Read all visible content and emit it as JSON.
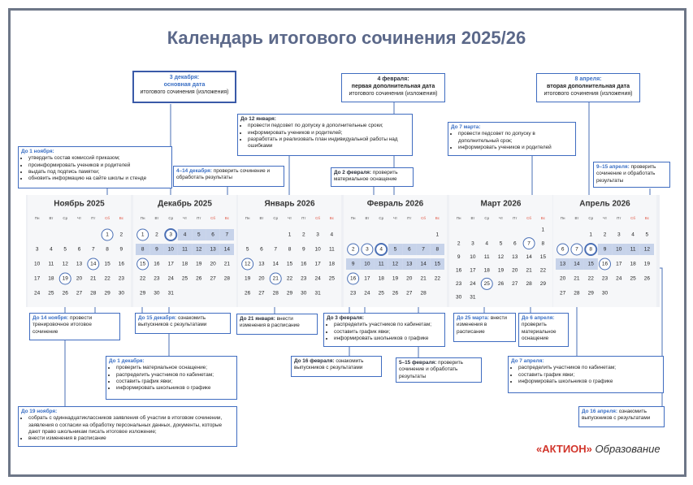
{
  "title": "Календарь итогового сочинения 2025/26",
  "weekdays": [
    "Пн",
    "Вт",
    "Ср",
    "Чт",
    "Пт",
    "Сб",
    "Вс"
  ],
  "weekend_color": "#e0523f",
  "highlight_color": "#c7d3ea",
  "circle_color": "#4a6fb5",
  "months": [
    {
      "name": "Ноябрь 2025",
      "weeks": [
        [
          null,
          null,
          null,
          null,
          null,
          1,
          2
        ],
        [
          3,
          4,
          5,
          6,
          7,
          8,
          9
        ],
        [
          10,
          11,
          12,
          13,
          14,
          15,
          16
        ],
        [
          17,
          18,
          19,
          20,
          21,
          22,
          23
        ],
        [
          24,
          25,
          26,
          27,
          28,
          29,
          30
        ]
      ],
      "highlighted": [],
      "circled": [
        1,
        14,
        19
      ]
    },
    {
      "name": "Декабрь 2025",
      "weeks": [
        [
          1,
          2,
          3,
          4,
          5,
          6,
          7
        ],
        [
          8,
          9,
          10,
          11,
          12,
          13,
          14
        ],
        [
          15,
          16,
          17,
          18,
          19,
          20,
          21
        ],
        [
          22,
          23,
          24,
          25,
          26,
          27,
          28
        ],
        [
          29,
          30,
          31,
          null,
          null,
          null,
          null
        ]
      ],
      "highlighted": [
        4,
        5,
        6,
        7,
        8,
        9,
        10,
        11,
        12,
        13,
        14
      ],
      "circled": [
        1,
        15
      ],
      "main_date": 3
    },
    {
      "name": "Январь 2026",
      "weeks": [
        [
          null,
          null,
          null,
          1,
          2,
          3,
          4
        ],
        [
          5,
          6,
          7,
          8,
          9,
          10,
          11
        ],
        [
          12,
          13,
          14,
          15,
          16,
          17,
          18
        ],
        [
          19,
          20,
          21,
          22,
          23,
          24,
          25
        ],
        [
          26,
          27,
          28,
          29,
          30,
          31,
          null
        ]
      ],
      "highlighted": [],
      "circled": [
        12,
        21
      ]
    },
    {
      "name": "Февраль 2026",
      "weeks": [
        [
          null,
          null,
          null,
          null,
          null,
          null,
          1
        ],
        [
          2,
          3,
          4,
          5,
          6,
          7,
          8
        ],
        [
          9,
          10,
          11,
          12,
          13,
          14,
          15
        ],
        [
          16,
          17,
          18,
          19,
          20,
          21,
          22
        ],
        [
          23,
          24,
          25,
          26,
          27,
          28,
          null
        ]
      ],
      "highlighted": [
        5,
        6,
        7,
        8,
        9,
        10,
        11,
        12,
        13,
        14,
        15
      ],
      "circled": [
        2,
        3,
        16
      ],
      "main_date": 4
    },
    {
      "name": "Март 2026",
      "weeks": [
        [
          null,
          null,
          null,
          null,
          null,
          null,
          1
        ],
        [
          2,
          3,
          4,
          5,
          6,
          7,
          8
        ],
        [
          9,
          10,
          11,
          12,
          13,
          14,
          15
        ],
        [
          16,
          17,
          18,
          19,
          20,
          21,
          22
        ],
        [
          23,
          24,
          25,
          26,
          27,
          28,
          29
        ],
        [
          30,
          31,
          null,
          null,
          null,
          null,
          null
        ]
      ],
      "highlighted": [],
      "circled": [
        7,
        25
      ]
    },
    {
      "name": "Апрель 2026",
      "weeks": [
        [
          null,
          null,
          1,
          2,
          3,
          4,
          5
        ],
        [
          6,
          7,
          8,
          9,
          10,
          11,
          12
        ],
        [
          13,
          14,
          15,
          16,
          17,
          18,
          19
        ],
        [
          20,
          21,
          22,
          23,
          24,
          25,
          26
        ],
        [
          27,
          28,
          29,
          30,
          null,
          null,
          null
        ]
      ],
      "highlighted": [
        9,
        10,
        11,
        12,
        13,
        14,
        15
      ],
      "circled": [
        6,
        7,
        16
      ],
      "main_date": 8
    }
  ],
  "callouts": [
    {
      "label": "3 декабря:",
      "lines": [
        "основная дата",
        "итогового сочинения (изложения)"
      ],
      "label_color": "#3a6fc4"
    },
    {
      "label": "4 февраля:",
      "lines": [
        "первая дополнительная дата",
        "итогового сочинения (изложения)"
      ],
      "label_color": "#2a2f3a"
    },
    {
      "label": "8 апреля:",
      "lines": [
        "вторая дополнительная дата",
        "итогового сочинения (изложения)"
      ],
      "label_color": "#3a6fc4"
    },
    {
      "label": "До 1 ноября:",
      "items": [
        "утвердить состав комиссий приказом;",
        "проинформировать учеников и родителей",
        "выдать под подпись памятки;",
        "обновить информацию на сайте школы и стенде"
      ],
      "label_color": "#3a6fc4"
    },
    {
      "label": "До 12 января:",
      "items": [
        "провести педсовет по допуску в дополнительные сроки;",
        "информировать учеников и родителей;",
        "разработать и реализовать план индивидуальной работы над ошибками"
      ],
      "label_color": "#2a2f3a"
    },
    {
      "label": "До 7 марта:",
      "items": [
        "провести педсовет по допуску в дополнительный срок;",
        "информировать учеников и родителей"
      ],
      "label_color": "#3a6fc4"
    },
    {
      "label": "4–14 декабря:",
      "text": "проверить сочинение и обработать результаты",
      "label_color": "#3a6fc4"
    },
    {
      "label": "До 2 февраля:",
      "text": "проверить материальное оснащение",
      "label_color": "#2a2f3a"
    },
    {
      "label": "9–15 апреля:",
      "text": "проверить сочинение и обработать результаты",
      "label_color": "#3a6fc4"
    },
    {
      "label": "До 14 ноября:",
      "text": "провести тренировочное итоговое сочинение",
      "label_color": "#3a6fc4"
    },
    {
      "label": "До 15 декабря:",
      "text": "ознакомить выпускников с результатами",
      "label_color": "#3a6fc4"
    },
    {
      "label": "До 21 января:",
      "text": "внести изменения в расписание",
      "label_color": "#2a2f3a"
    },
    {
      "label": "До 3 февраля:",
      "items": [
        "распределить участников по кабинетам;",
        "составить график явки;",
        "информировать школьников о графике"
      ],
      "label_color": "#2a2f3a"
    },
    {
      "label": "До 25 марта:",
      "text": "внести изменения в расписание",
      "label_color": "#3a6fc4"
    },
    {
      "label": "До 6 апреля:",
      "text": "проверить материальное оснащение",
      "label_color": "#3a6fc4"
    },
    {
      "label": "До 1 декабря:",
      "items": [
        "проверить материальное оснащение;",
        "распределить участников по кабинетам;",
        "составить график явки;",
        "информировать школьников о графике"
      ],
      "label_color": "#3a6fc4"
    },
    {
      "label": "До 16 февраля:",
      "text": "ознакомить выпускников с результатами",
      "label_color": "#2a2f3a"
    },
    {
      "label": "5–15 февраля:",
      "text": "проверить сочинение и обработать результаты",
      "label_color": "#2a2f3a"
    },
    {
      "label": "До 7 апреля:",
      "items": [
        "распределить участников по кабинетам;",
        "составить график явки;",
        "информировать школьников о графике"
      ],
      "label_color": "#3a6fc4"
    },
    {
      "label": "До 19 ноября:",
      "items": [
        "собрать с одиннадцатиклассников заявления об участии в итоговом сочинении, заявления о согласии на обработку персональных данных, документы, которые дают право школьникам писать итоговое изложение;",
        "внести изменения в расписание"
      ],
      "label_color": "#3a6fc4"
    },
    {
      "label": "До 16 апреля:",
      "text": "ознакомить выпускников с результатами",
      "label_color": "#3a6fc4"
    }
  ],
  "logo": {
    "brand": "«АКТИОН»",
    "product": "Образование"
  }
}
